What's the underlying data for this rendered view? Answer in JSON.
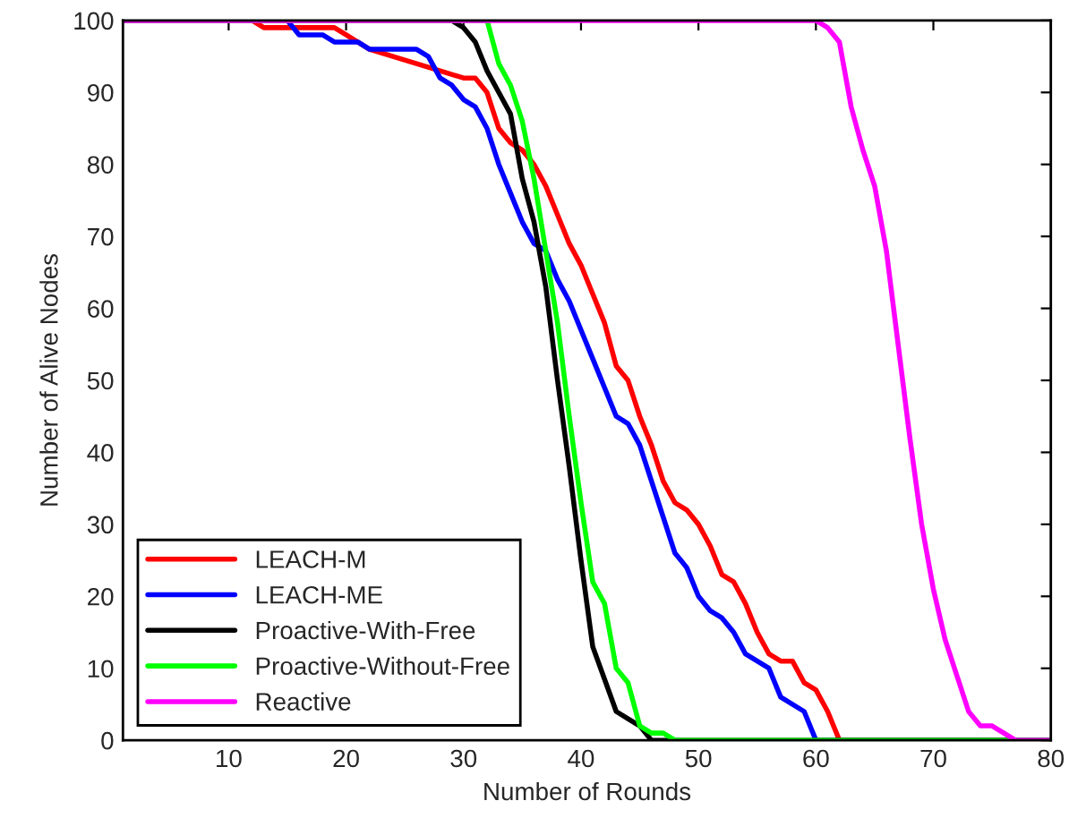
{
  "chart_data": {
    "type": "line",
    "xlabel": "Number of Rounds",
    "ylabel": "Number of Alive Nodes",
    "xlim": [
      1,
      80
    ],
    "ylim": [
      0,
      100
    ],
    "xticks": [
      10,
      20,
      30,
      40,
      50,
      60,
      70,
      80
    ],
    "yticks": [
      0,
      10,
      20,
      30,
      40,
      50,
      60,
      70,
      80,
      90,
      100
    ],
    "grid": false,
    "legend": "bottom left",
    "marker": "none",
    "line_style": "solid",
    "series": [
      {
        "name": "LEACH-M",
        "color": "#ff0000",
        "x": [
          1,
          12,
          13,
          19,
          20,
          22,
          24,
          26,
          28,
          30,
          31,
          32,
          33,
          34,
          35,
          36,
          37,
          38,
          39,
          40,
          41,
          42,
          43,
          44,
          45,
          46,
          47,
          48,
          49,
          50,
          51,
          52,
          53,
          54,
          55,
          56,
          57,
          58,
          59,
          60,
          61,
          62,
          80
        ],
        "values": [
          100,
          100,
          99,
          99,
          98,
          96,
          95,
          94,
          93,
          92,
          92,
          90,
          85,
          83,
          82,
          80,
          77,
          73,
          69,
          66,
          62,
          58,
          52,
          50,
          45,
          41,
          36,
          33,
          32,
          30,
          27,
          23,
          22,
          19,
          15,
          12,
          11,
          11,
          8,
          7,
          4,
          0,
          0
        ]
      },
      {
        "name": "LEACH-ME",
        "color": "#0000ff",
        "x": [
          1,
          15,
          16,
          18,
          19,
          21,
          22,
          26,
          27,
          28,
          29,
          30,
          31,
          32,
          33,
          34,
          35,
          36,
          37,
          38,
          39,
          40,
          41,
          42,
          43,
          44,
          45,
          46,
          47,
          48,
          49,
          50,
          51,
          52,
          53,
          54,
          55,
          56,
          57,
          59,
          60,
          80
        ],
        "values": [
          100,
          100,
          98,
          98,
          97,
          97,
          96,
          96,
          95,
          92,
          91,
          89,
          88,
          85,
          80,
          76,
          72,
          69,
          68,
          64,
          61,
          57,
          53,
          49,
          45,
          44,
          41,
          36,
          31,
          26,
          24,
          20,
          18,
          17,
          15,
          12,
          11,
          10,
          6,
          4,
          0,
          0
        ]
      },
      {
        "name": "Proactive-With-Free",
        "color": "#000000",
        "x": [
          1,
          29,
          30,
          31,
          32,
          33,
          34,
          35,
          36,
          37,
          38,
          39,
          40,
          41,
          43,
          44,
          45,
          46,
          80
        ],
        "values": [
          100,
          100,
          99,
          97,
          93,
          90,
          87,
          78,
          72,
          63,
          50,
          38,
          25,
          13,
          4,
          3,
          2,
          0,
          0
        ]
      },
      {
        "name": "Proactive-Without-Free",
        "color": "#00ff00",
        "x": [
          1,
          32,
          33,
          34,
          35,
          36,
          37,
          38,
          39,
          40,
          41,
          42,
          43,
          44,
          45,
          46,
          47,
          48,
          80
        ],
        "values": [
          100,
          100,
          94,
          91,
          86,
          78,
          68,
          58,
          45,
          33,
          22,
          19,
          10,
          8,
          2,
          1,
          1,
          0,
          0
        ]
      },
      {
        "name": "Reactive",
        "color": "#ff00ff",
        "x": [
          1,
          60,
          61,
          62,
          63,
          64,
          65,
          66,
          67,
          68,
          69,
          70,
          71,
          72,
          73,
          74,
          75,
          76,
          77,
          80
        ],
        "values": [
          100,
          100,
          99,
          97,
          88,
          82,
          77,
          68,
          55,
          42,
          30,
          21,
          14,
          9,
          4,
          2,
          2,
          1,
          0,
          0
        ]
      }
    ]
  }
}
